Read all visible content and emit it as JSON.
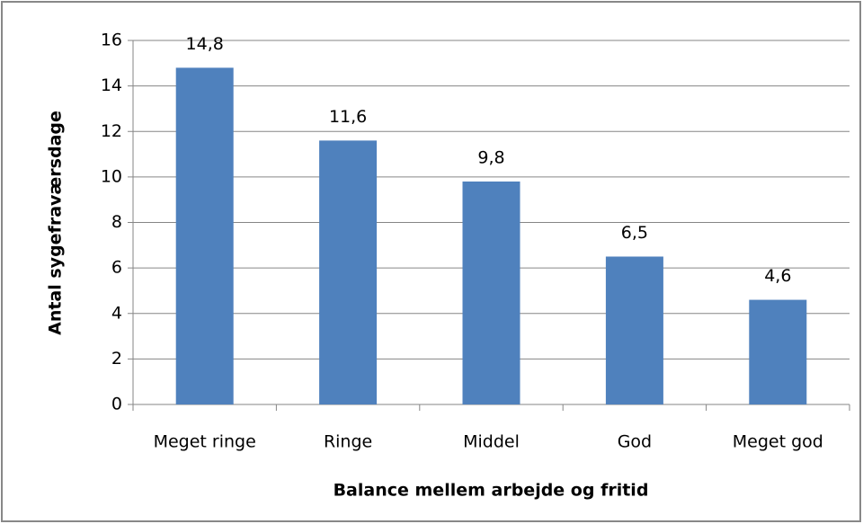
{
  "chart_data": {
    "type": "bar",
    "categories": [
      "Meget ringe",
      "Ringe",
      "Middel",
      "God",
      "Meget god"
    ],
    "values": [
      14.8,
      11.6,
      9.8,
      6.5,
      4.6
    ],
    "value_labels": [
      "14,8",
      "11,6",
      "9,8",
      "6,5",
      "4,6"
    ],
    "color": "#4f81bd",
    "xlabel": "Balance mellem arbejde og fritid",
    "ylabel": "Antal sygefraværsdage",
    "ylim": [
      0,
      16
    ],
    "yticks": [
      0,
      2,
      4,
      6,
      8,
      10,
      12,
      14,
      16
    ],
    "grid": true
  }
}
